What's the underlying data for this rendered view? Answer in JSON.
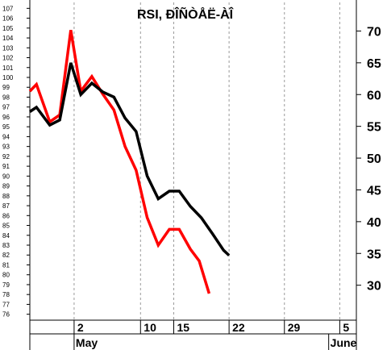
{
  "chart_data": {
    "type": "line",
    "title": "RSI, ÐÎÑÒÅË-ÀÎ",
    "left_axis": {
      "ylim": [
        75.4,
        107.6
      ],
      "ticks": [
        76,
        77,
        78,
        79,
        80,
        81,
        82,
        83,
        84,
        85,
        86,
        87,
        88,
        89,
        90,
        91,
        92,
        93,
        94,
        95,
        96,
        97,
        98,
        99,
        100,
        101,
        102,
        103,
        104,
        105,
        106,
        107
      ]
    },
    "right_axis": {
      "ylim": [
        24.5,
        74.5
      ],
      "ticks": [
        30,
        35,
        40,
        45,
        50,
        55,
        60,
        65,
        70
      ]
    },
    "x_axis": {
      "day_ticks": [
        {
          "label": "2",
          "x": 4
        },
        {
          "label": "10",
          "x": 10
        },
        {
          "label": "15",
          "x": 13
        },
        {
          "label": "22",
          "x": 18
        },
        {
          "label": "29",
          "x": 23
        },
        {
          "label": "5",
          "x": 28
        }
      ],
      "month_labels": [
        {
          "label": "May",
          "x": 4
        },
        {
          "label": "June",
          "x": 27
        }
      ],
      "xlim": [
        0,
        29.5
      ]
    },
    "grid": "vertical dashed at day ticks",
    "series": [
      {
        "axis": "left",
        "color": "#ff0000",
        "points": [
          [
            0,
            98.6
          ],
          [
            0.6,
            99.3
          ],
          [
            1.8,
            95.5
          ],
          [
            2.7,
            96.2
          ],
          [
            3.7,
            104.8
          ],
          [
            4.6,
            98.6
          ],
          [
            5.6,
            100.1
          ],
          [
            6.6,
            98.3
          ],
          [
            7.6,
            96.7
          ],
          [
            8.6,
            93.0
          ],
          [
            9.6,
            90.6
          ],
          [
            10.6,
            85.8
          ],
          [
            11.6,
            83.0
          ],
          [
            12.6,
            84.6
          ],
          [
            13.5,
            84.6
          ],
          [
            14.5,
            82.6
          ],
          [
            15.3,
            81.4
          ],
          [
            16.2,
            78.1
          ]
        ]
      },
      {
        "axis": "right",
        "color": "#000000",
        "points": [
          [
            0,
            57.3
          ],
          [
            0.6,
            58.0
          ],
          [
            1.8,
            55.2
          ],
          [
            2.7,
            56.0
          ],
          [
            3.7,
            65.0
          ],
          [
            4.6,
            60.0
          ],
          [
            5.6,
            61.8
          ],
          [
            6.6,
            60.4
          ],
          [
            7.6,
            59.6
          ],
          [
            8.6,
            56.3
          ],
          [
            9.6,
            54.2
          ],
          [
            10.6,
            47.2
          ],
          [
            11.6,
            43.6
          ],
          [
            12.6,
            44.8
          ],
          [
            13.5,
            44.8
          ],
          [
            14.5,
            42.4
          ],
          [
            15.5,
            40.6
          ],
          [
            16.5,
            38.1
          ],
          [
            17.5,
            35.5
          ],
          [
            18.0,
            34.7
          ]
        ]
      }
    ]
  }
}
